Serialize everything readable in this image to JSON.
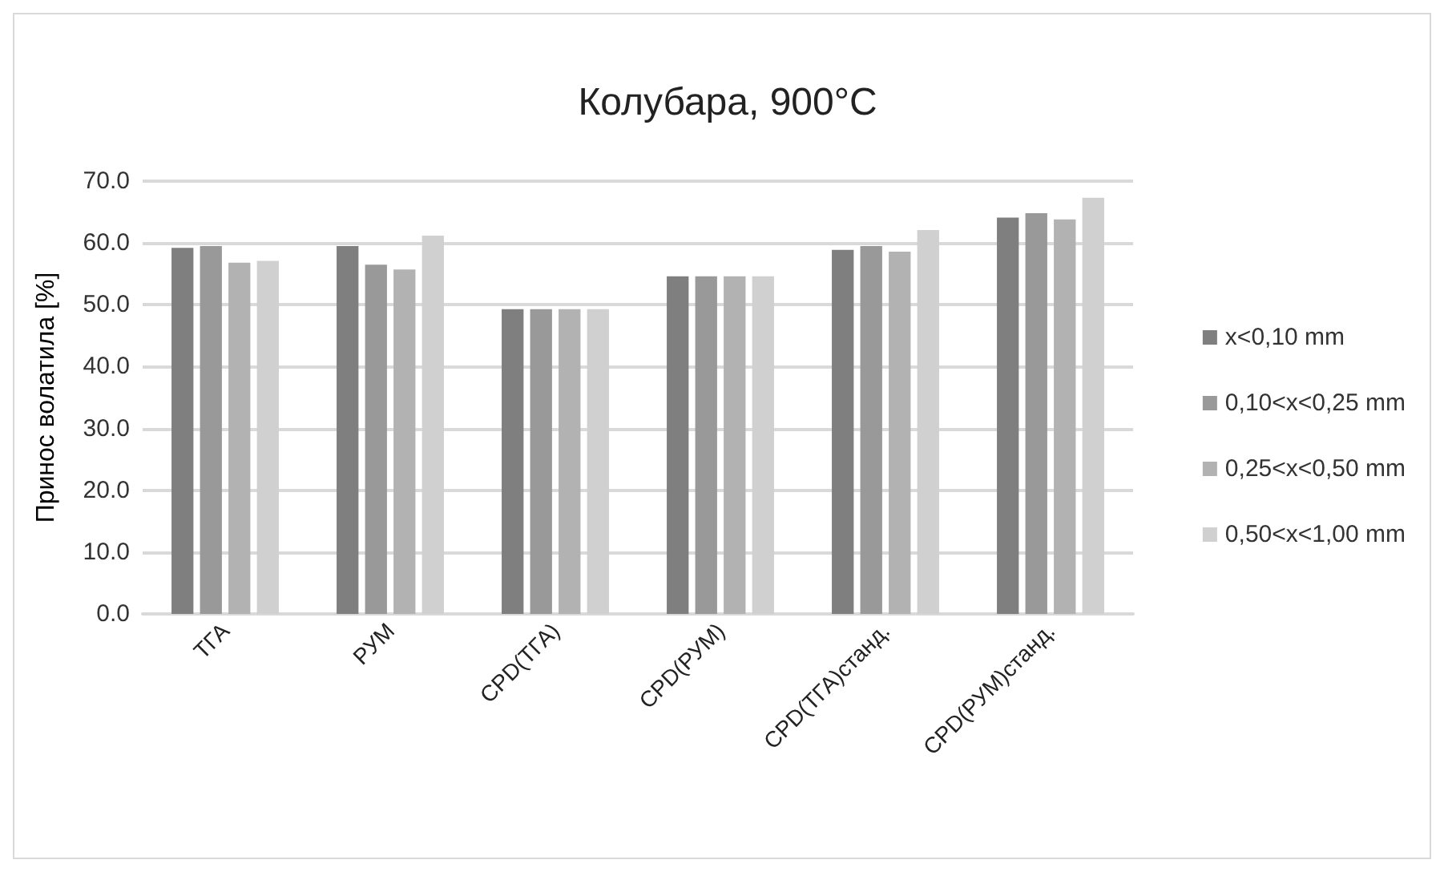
{
  "chart_data": {
    "type": "bar",
    "title": "Колубара, 900°C",
    "ylabel": "Принос волатила [%]",
    "categories": [
      "ТГА",
      "РУМ",
      "CPD(ТГА)",
      "CPD(РУМ)",
      "CPD(ТГА)станд.",
      "CPD(РУМ)станд."
    ],
    "series": [
      {
        "name": "x<0,10 mm",
        "color": "#7f7f7f",
        "values": [
          59.2,
          59.5,
          49.3,
          54.6,
          58.9,
          64.1
        ]
      },
      {
        "name": "0,10<x<0,25 mm",
        "color": "#999999",
        "values": [
          59.5,
          56.5,
          49.3,
          54.6,
          59.5,
          64.8
        ]
      },
      {
        "name": "0,25<x<0,50 mm",
        "color": "#b2b2b2",
        "values": [
          56.8,
          55.7,
          49.3,
          54.6,
          58.6,
          63.8
        ]
      },
      {
        "name": "0,50<x<1,00 mm",
        "color": "#d0d0d0",
        "values": [
          57.1,
          61.2,
          49.3,
          54.6,
          62.1,
          67.3
        ]
      }
    ],
    "ylim": [
      0,
      70
    ],
    "yticks": [
      {
        "value": 0,
        "label": "0.0"
      },
      {
        "value": 10,
        "label": "10.0"
      },
      {
        "value": 20,
        "label": "20.0"
      },
      {
        "value": 30,
        "label": "30.0"
      },
      {
        "value": 40,
        "label": "40.0"
      },
      {
        "value": 50,
        "label": "50.0"
      },
      {
        "value": 60,
        "label": "60.0"
      },
      {
        "value": 70,
        "label": "70.0"
      }
    ],
    "grid": "y",
    "legend": "right"
  }
}
